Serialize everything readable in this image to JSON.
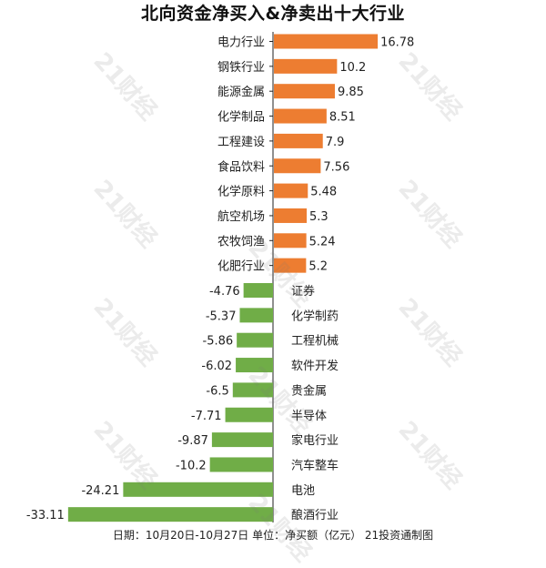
{
  "header": {
    "title": "北向资金净买入&净卖出十大行业"
  },
  "footer": {
    "note": "日期：10月20日-10月27日 单位：净买额（亿元） 21投资通制图"
  },
  "watermark_text": "21财经",
  "colors": {
    "positive": "#ED7D31",
    "negative": "#70AD47",
    "axis": "#222222"
  },
  "chart_data": {
    "type": "bar",
    "orientation": "horizontal",
    "title": "北向资金净买入&净卖出十大行业",
    "xlabel": "",
    "ylabel": "",
    "unit": "亿元",
    "categories": [
      "电力行业",
      "钢铁行业",
      "能源金属",
      "化学制品",
      "工程建设",
      "食品饮料",
      "化学原料",
      "航空机场",
      "农牧饲渔",
      "化肥行业",
      "证券",
      "化学制药",
      "工程机械",
      "软件开发",
      "贵金属",
      "半导体",
      "家电行业",
      "汽车整车",
      "电池",
      "酿酒行业"
    ],
    "values": [
      16.78,
      10.2,
      9.85,
      8.51,
      7.9,
      7.56,
      5.48,
      5.3,
      5.24,
      5.2,
      -4.76,
      -5.37,
      -5.86,
      -6.02,
      -6.5,
      -7.71,
      -9.87,
      -10.2,
      -24.21,
      -33.11
    ],
    "value_labels": [
      "16.78",
      "10.2",
      "9.85",
      "8.51",
      "7.9",
      "7.56",
      "5.48",
      "5.3",
      "5.24",
      "5.2",
      "-4.76",
      "-5.37",
      "-5.86",
      "-6.02",
      "-6.5",
      "-7.71",
      "-9.87",
      "-10.2",
      "-24.21",
      "-33.11"
    ],
    "grid": false,
    "legend": "none"
  }
}
